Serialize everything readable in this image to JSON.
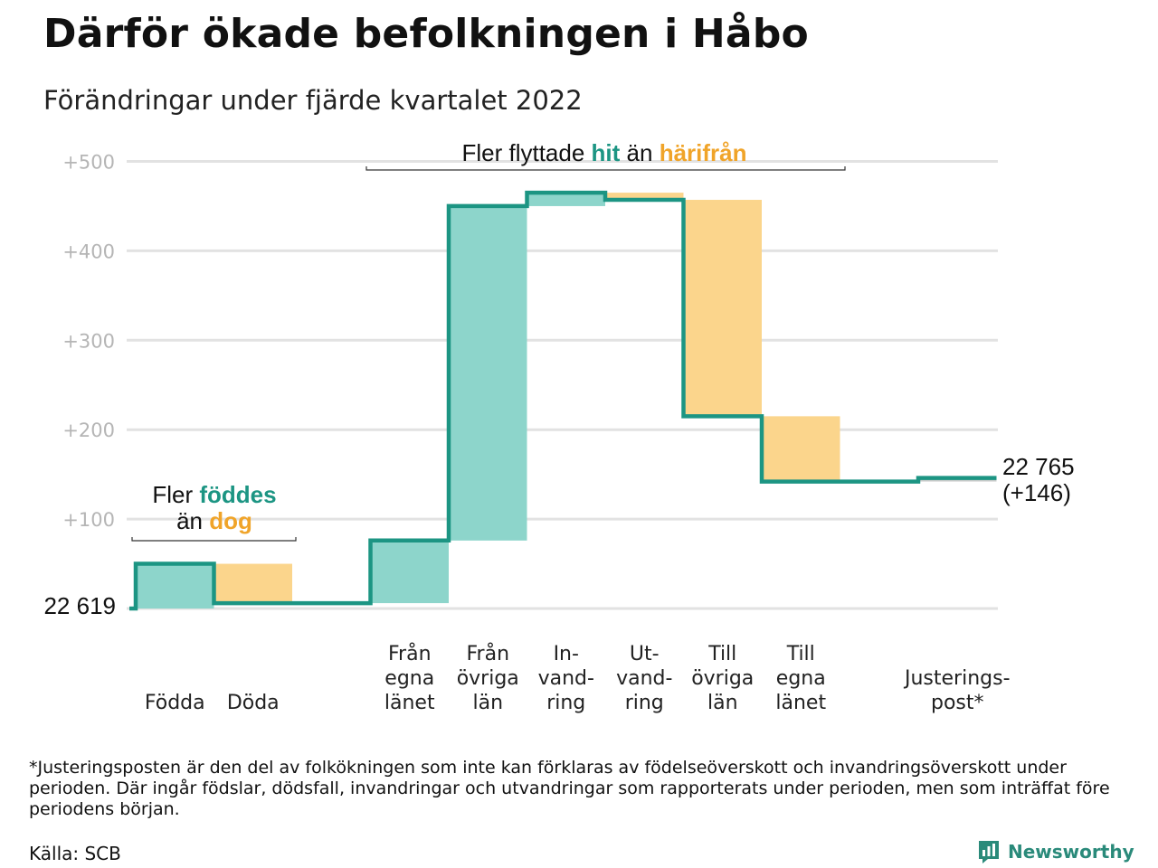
{
  "header": {
    "title": "Därför ökade befolkningen i Håbo",
    "subtitle": "Förändringar under fjärde kvartalet 2022"
  },
  "chart_data": {
    "type": "waterfall",
    "start_value": 22619,
    "end_value": 22765,
    "ylim": [
      0,
      500
    ],
    "yticks": [
      100,
      200,
      300,
      400,
      500
    ],
    "ytick_labels": [
      "+100",
      "+200",
      "+300",
      "+400",
      "+500"
    ],
    "grid": true,
    "start_label": "22 619",
    "end_label_value": "22 765",
    "end_label_change": "(+146)",
    "colors": {
      "positive": "#8dd5cb",
      "negative": "#fbd58c",
      "line": "#1c9583",
      "adjust": "#cccccc"
    },
    "steps": [
      {
        "key": "fodda",
        "label": [
          "Födda"
        ],
        "change": 50,
        "kind": "positive"
      },
      {
        "key": "doda",
        "label": [
          "Döda"
        ],
        "change": -44,
        "kind": "negative"
      },
      {
        "key": "gap",
        "label": [
          ""
        ],
        "change": 0,
        "kind": "none"
      },
      {
        "key": "fran_egna",
        "label": [
          "Från",
          "egna",
          "länet"
        ],
        "change": 70,
        "kind": "positive"
      },
      {
        "key": "fran_ovriga",
        "label": [
          "Från",
          "övriga",
          "län"
        ],
        "change": 374,
        "kind": "positive"
      },
      {
        "key": "invandring",
        "label": [
          "In-",
          "vand-",
          "ring"
        ],
        "change": 15,
        "kind": "positive"
      },
      {
        "key": "utvandring",
        "label": [
          "Ut-",
          "vand-",
          "ring"
        ],
        "change": -8,
        "kind": "negative"
      },
      {
        "key": "till_ovriga",
        "label": [
          "Till",
          "övriga",
          "län"
        ],
        "change": -242,
        "kind": "negative"
      },
      {
        "key": "till_egna",
        "label": [
          "Till",
          "egna",
          "länet"
        ],
        "change": -73,
        "kind": "negative"
      },
      {
        "key": "gap2",
        "label": [
          ""
        ],
        "change": 0,
        "kind": "none"
      },
      {
        "key": "justering",
        "label": [
          "Justerings-",
          "post*"
        ],
        "change": 4,
        "kind": "adjust"
      }
    ],
    "annotations": {
      "births": {
        "line1_prefix": "Fler ",
        "line1_highlight": "föddes",
        "line2_prefix": "än ",
        "line2_highlight": "dog"
      },
      "migration": {
        "prefix": "Fler flyttade ",
        "highlight1": "hit",
        "middle": " än ",
        "highlight2": "härifrån"
      }
    }
  },
  "footer": {
    "footnote": "*Justeringsposten är den del av folkökningen som inte kan förklaras av födelseöverskott och invandringsöverskott under perioden. Där ingår födslar, dödsfall, invandringar och utvandringar som rapporterats under perioden, men som inträffat före periodens början.",
    "source": "Källa: SCB",
    "brand": "Newsworthy",
    "brand_icon": "newsworthy-logo-icon"
  }
}
